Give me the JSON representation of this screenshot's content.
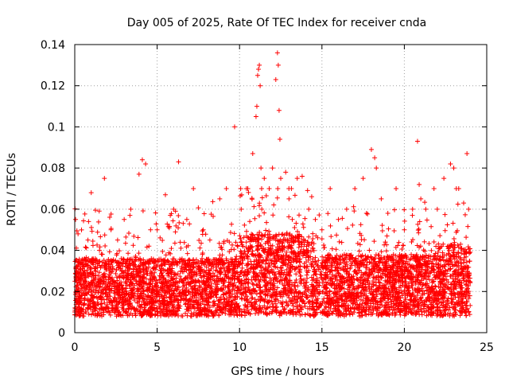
{
  "chart_data": {
    "type": "scatter",
    "title": "Day 005 of 2025, Rate Of TEC Index for receiver cnda",
    "xlabel": "GPS time / hours",
    "ylabel": "ROTI / TECUs",
    "xlim": [
      0,
      25
    ],
    "ylim": [
      0,
      0.14
    ],
    "x_ticks": [
      0,
      5,
      10,
      15,
      20,
      25
    ],
    "x_tick_labels": [
      "0",
      "5",
      "10",
      "15",
      "20",
      "25"
    ],
    "y_ticks": [
      0,
      0.02,
      0.04,
      0.06,
      0.08,
      0.1,
      0.12,
      0.14
    ],
    "y_tick_labels": [
      "0",
      "0.02",
      "0.04",
      "0.06",
      "0.08",
      "0.1",
      "0.12",
      "0.14"
    ],
    "grid": true,
    "legend": "none",
    "marker": "plus",
    "color": "#ff0000",
    "series": [
      {
        "x": [
          0.05,
          0.2,
          0.4,
          0.8,
          1.0,
          1.5,
          1.8,
          2.2,
          2.6,
          3.0,
          3.4,
          3.9,
          4.1,
          4.3,
          4.6,
          5.0,
          5.5,
          6.0,
          6.3,
          6.8,
          7.2,
          7.8,
          8.2,
          8.8,
          9.2,
          9.7,
          10.1,
          10.5,
          10.8,
          11.0,
          11.05,
          11.1,
          11.15,
          11.2,
          11.25,
          11.3,
          11.35,
          11.5,
          11.8,
          12.0,
          12.2,
          12.3,
          12.35,
          12.4,
          12.45,
          12.5,
          12.8,
          13.0,
          13.2,
          13.5,
          13.8,
          14.2,
          14.6,
          15.0,
          15.5,
          16.0,
          16.5,
          17.0,
          17.5,
          18.0,
          18.2,
          18.3,
          18.6,
          19.0,
          19.5,
          20.0,
          20.5,
          20.8,
          20.9,
          21.0,
          21.3,
          21.8,
          22.0,
          22.4,
          22.8,
          23.0,
          23.3,
          23.6,
          23.8,
          23.9
        ],
        "y": [
          0.055,
          0.048,
          0.035,
          0.045,
          0.068,
          0.04,
          0.075,
          0.05,
          0.045,
          0.055,
          0.06,
          0.077,
          0.084,
          0.082,
          0.05,
          0.05,
          0.067,
          0.06,
          0.083,
          0.055,
          0.07,
          0.05,
          0.045,
          0.065,
          0.07,
          0.1,
          0.06,
          0.07,
          0.087,
          0.105,
          0.11,
          0.125,
          0.128,
          0.13,
          0.12,
          0.08,
          0.06,
          0.075,
          0.07,
          0.08,
          0.123,
          0.136,
          0.13,
          0.108,
          0.094,
          0.075,
          0.078,
          0.065,
          0.055,
          0.075,
          0.076,
          0.06,
          0.055,
          0.05,
          0.07,
          0.055,
          0.06,
          0.07,
          0.075,
          0.089,
          0.085,
          0.08,
          0.065,
          0.058,
          0.07,
          0.05,
          0.06,
          0.093,
          0.072,
          0.065,
          0.06,
          0.07,
          0.06,
          0.075,
          0.082,
          0.08,
          0.07,
          0.063,
          0.087,
          0.06
        ]
      }
    ]
  }
}
